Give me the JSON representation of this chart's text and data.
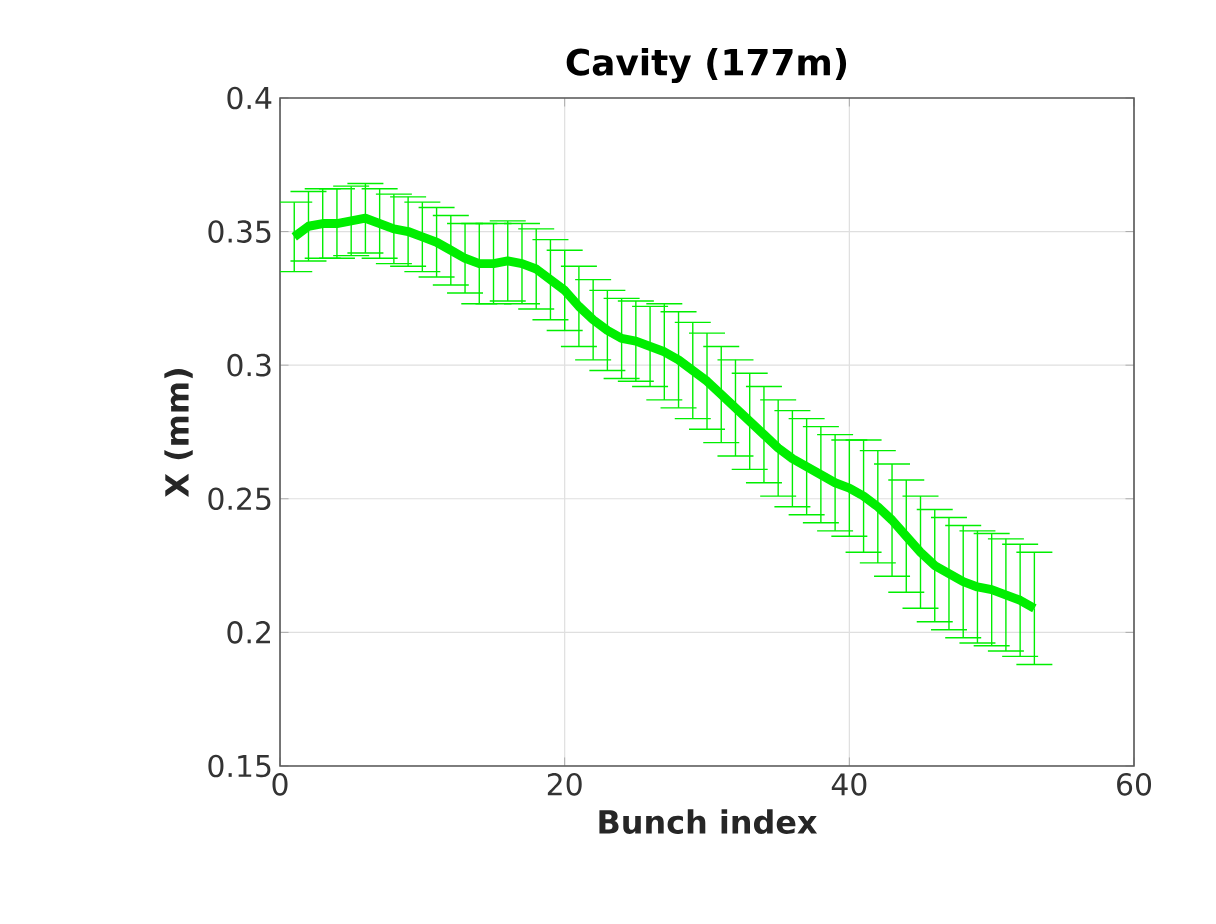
{
  "chart_data": {
    "type": "line",
    "title": "Cavity (177m)",
    "xlabel": "Bunch index",
    "ylabel": "X (mm)",
    "x": [
      1,
      2,
      3,
      4,
      5,
      6,
      7,
      8,
      9,
      10,
      11,
      12,
      13,
      14,
      15,
      16,
      17,
      18,
      19,
      20,
      21,
      22,
      23,
      24,
      25,
      26,
      27,
      28,
      29,
      30,
      31,
      32,
      33,
      34,
      35,
      36,
      37,
      38,
      39,
      40,
      41,
      42,
      43,
      44,
      45,
      46,
      47,
      48,
      49,
      50,
      51,
      52,
      53
    ],
    "values": [
      0.348,
      0.352,
      0.353,
      0.353,
      0.354,
      0.355,
      0.353,
      0.351,
      0.35,
      0.348,
      0.346,
      0.343,
      0.34,
      0.338,
      0.338,
      0.339,
      0.338,
      0.336,
      0.332,
      0.328,
      0.322,
      0.317,
      0.313,
      0.31,
      0.309,
      0.307,
      0.305,
      0.302,
      0.298,
      0.294,
      0.289,
      0.284,
      0.279,
      0.274,
      0.269,
      0.265,
      0.262,
      0.259,
      0.256,
      0.254,
      0.251,
      0.247,
      0.242,
      0.236,
      0.23,
      0.225,
      0.222,
      0.219,
      0.217,
      0.216,
      0.214,
      0.212,
      0.209
    ],
    "errors": [
      0.013,
      0.013,
      0.013,
      0.013,
      0.013,
      0.013,
      0.013,
      0.013,
      0.013,
      0.013,
      0.013,
      0.013,
      0.013,
      0.015,
      0.015,
      0.015,
      0.015,
      0.015,
      0.015,
      0.015,
      0.015,
      0.015,
      0.015,
      0.015,
      0.015,
      0.015,
      0.018,
      0.018,
      0.018,
      0.018,
      0.018,
      0.018,
      0.018,
      0.018,
      0.018,
      0.018,
      0.018,
      0.018,
      0.018,
      0.018,
      0.021,
      0.021,
      0.021,
      0.021,
      0.021,
      0.021,
      0.021,
      0.021,
      0.021,
      0.021,
      0.021,
      0.021,
      0.021
    ],
    "color": "#00ee00",
    "xlim": [
      0,
      60
    ],
    "ylim": [
      0.15,
      0.4
    ],
    "xticks": [
      0,
      20,
      40,
      60
    ],
    "yticks": [
      0.15,
      0.2,
      0.25,
      0.3,
      0.35,
      0.4
    ],
    "grid": true
  }
}
